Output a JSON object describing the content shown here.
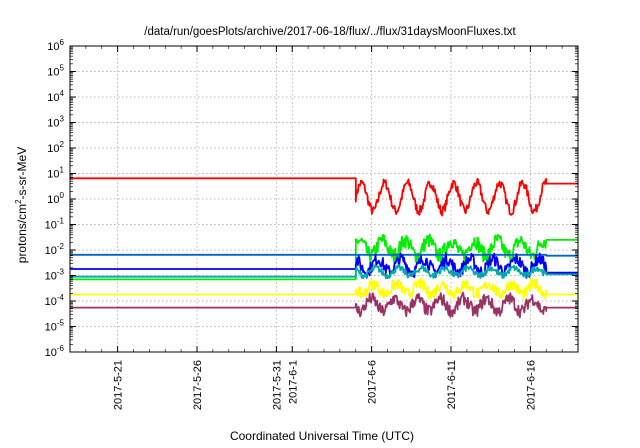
{
  "chart_data": {
    "type": "line",
    "title": "/data/run/goesPlots/archive/2017-06-18/flux/../flux/31daysMoonFluxes.txt",
    "xlabel": "Coordinated Universal Time (UTC)",
    "ylabel": "protons/cm²-s-sr-MeV",
    "ylabel_parts": {
      "pre": "protons/cm",
      "sup": "2",
      "post": "-s-sr-MeV"
    },
    "y_scale": "log",
    "ylim": [
      1e-06,
      1000000.0
    ],
    "y_ticks": [
      {
        "exp": -6,
        "base": "10",
        "sup": "-6"
      },
      {
        "exp": -5,
        "base": "10",
        "sup": "-5"
      },
      {
        "exp": -4,
        "base": "10",
        "sup": "-4"
      },
      {
        "exp": -3,
        "base": "10",
        "sup": "-3"
      },
      {
        "exp": -2,
        "base": "10",
        "sup": "-2"
      },
      {
        "exp": -1,
        "base": "10",
        "sup": "-1"
      },
      {
        "exp": 0,
        "base": "10",
        "sup": "0"
      },
      {
        "exp": 1,
        "base": "10",
        "sup": "1"
      },
      {
        "exp": 2,
        "base": "10",
        "sup": "2"
      },
      {
        "exp": 3,
        "base": "10",
        "sup": "3"
      },
      {
        "exp": 4,
        "base": "10",
        "sup": "4"
      },
      {
        "exp": 5,
        "base": "10",
        "sup": "5"
      },
      {
        "exp": 6,
        "base": "10",
        "sup": "6"
      }
    ],
    "xlim": [
      "2017-05-18",
      "2017-06-19"
    ],
    "x_ticks": [
      {
        "date": "2017-05-21",
        "label": "2017-5-21"
      },
      {
        "date": "2017-05-26",
        "label": "2017-5-26"
      },
      {
        "date": "2017-05-31",
        "label": "2017-5-31"
      },
      {
        "date": "2017-06-01",
        "label": "2017-6-1"
      },
      {
        "date": "2017-06-06",
        "label": "2017-6-6"
      },
      {
        "date": "2017-06-11",
        "label": "2017-6-11"
      },
      {
        "date": "2017-06-16",
        "label": "2017-6-16"
      }
    ],
    "grid": true,
    "data_start": "2017-06-05",
    "data_end": "2017-06-17",
    "series": [
      {
        "color": "#ff0000",
        "constant": 6.5,
        "after_value": 4.0,
        "center": 1.2,
        "spread": 0.55,
        "noise": 0.18
      },
      {
        "color": "#00ee00",
        "constant": 0.0007,
        "after_value": 0.025,
        "center": 0.012,
        "spread": 0.3,
        "noise": 0.3
      },
      {
        "color": "#0066cc",
        "constant": 0.0065,
        "after_value": 0.006,
        "center": 0.0065,
        "spread": 0.0,
        "noise": 0.0
      },
      {
        "color": "#0000ff",
        "constant": 0.0018,
        "after_value": 0.0013,
        "center": 0.0025,
        "spread": 0.25,
        "noise": 0.25
      },
      {
        "color": "#00aaaa",
        "constant": 0.0009,
        "after_value": 0.0011,
        "center": 0.0014,
        "spread": 0.15,
        "noise": 0.12
      },
      {
        "color": "#ffff00",
        "constant": 0.00018,
        "after_value": 0.00018,
        "center": 0.0003,
        "spread": 0.2,
        "noise": 0.22
      },
      {
        "color": "#993366",
        "constant": 5.5e-05,
        "after_value": 5.5e-05,
        "center": 7e-05,
        "spread": 0.25,
        "noise": 0.25
      }
    ]
  }
}
